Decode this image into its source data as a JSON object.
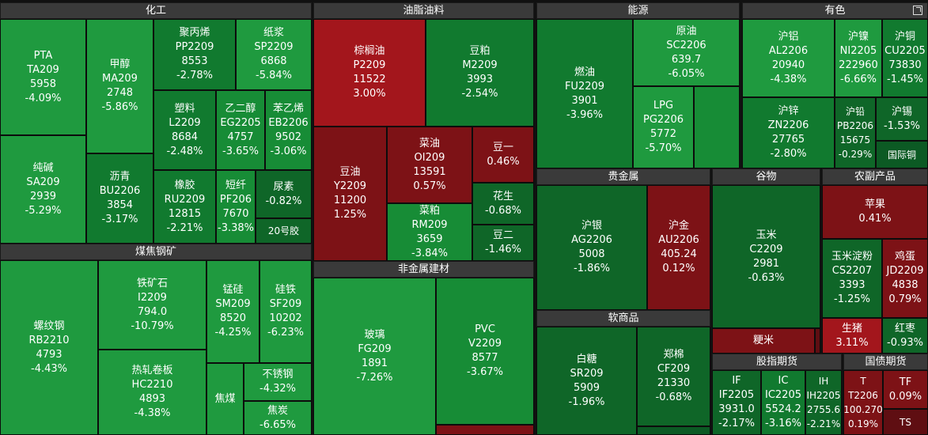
{
  "colors": {
    "g1": "#1f9a3f",
    "g2": "#178c36",
    "g3": "#117a2f",
    "g4": "#0f6628",
    "g5": "#0c5a24",
    "r1": "#a3161c",
    "r2": "#7d1216",
    "r3": "#5f0e12"
  },
  "sections": {
    "chemical": "化工",
    "oil": "油脂油料",
    "energy": "能源",
    "nonferrous": "有色",
    "coal_steel": "煤焦钢矿",
    "nonmetal": "非金属建材",
    "precious": "贵金属",
    "grain": "谷物",
    "agri": "农副产品",
    "soft": "软商品",
    "index_futures": "股指期货",
    "bond_futures": "国债期货"
  },
  "tiles": {
    "pta": {
      "name": "PTA",
      "code": "TA209",
      "price": "5958",
      "chg": "-4.09%"
    },
    "ma": {
      "name": "甲醇",
      "code": "MA209",
      "price": "2748",
      "chg": "-5.86%"
    },
    "pp": {
      "name": "聚丙烯",
      "code": "PP2209",
      "price": "8553",
      "chg": "-2.78%"
    },
    "sp": {
      "name": "纸浆",
      "code": "SP2209",
      "price": "6868",
      "chg": "-5.84%"
    },
    "l": {
      "name": "塑料",
      "code": "L2209",
      "price": "8684",
      "chg": "-2.48%"
    },
    "eg": {
      "name": "乙二醇",
      "code": "EG2205",
      "price": "4757",
      "chg": "-3.65%"
    },
    "eb": {
      "name": "苯乙烯",
      "code": "EB2206",
      "price": "9502",
      "chg": "-3.06%"
    },
    "sa": {
      "name": "纯碱",
      "code": "SA209",
      "price": "2939",
      "chg": "-5.29%"
    },
    "bu": {
      "name": "沥青",
      "code": "BU2206",
      "price": "3854",
      "chg": "-3.17%"
    },
    "ru": {
      "name": "橡胶",
      "code": "RU2209",
      "price": "12815",
      "chg": "-2.21%"
    },
    "pf": {
      "name": "短纤",
      "code": "PF206",
      "price": "7670",
      "chg": "-3.38%"
    },
    "ur": {
      "name": "尿素",
      "chg": "-0.82%"
    },
    "nr": {
      "name": "20号胶"
    },
    "p": {
      "name": "棕榈油",
      "code": "P2209",
      "price": "11522",
      "chg": "3.00%"
    },
    "m": {
      "name": "豆粕",
      "code": "M2209",
      "price": "3993",
      "chg": "-2.54%"
    },
    "y": {
      "name": "豆油",
      "code": "Y2209",
      "price": "11200",
      "chg": "1.25%"
    },
    "oi": {
      "name": "菜油",
      "code": "OI209",
      "price": "13591",
      "chg": "0.57%"
    },
    "a": {
      "name": "豆一",
      "chg": "0.46%"
    },
    "pk": {
      "name": "花生",
      "chg": "-0.68%"
    },
    "rm": {
      "name": "菜粕",
      "code": "RM209",
      "price": "3659",
      "chg": "-3.84%"
    },
    "b": {
      "name": "豆二",
      "chg": "-1.46%"
    },
    "fu": {
      "name": "燃油",
      "code": "FU2209",
      "price": "3901",
      "chg": "-3.96%"
    },
    "sc": {
      "name": "原油",
      "code": "SC2206",
      "price": "639.7",
      "chg": "-6.05%"
    },
    "pg": {
      "name": "LPG",
      "code": "PG2206",
      "price": "5772",
      "chg": "-5.70%"
    },
    "al": {
      "name": "沪铝",
      "code": "AL2206",
      "price": "20940",
      "chg": "-4.38%"
    },
    "ni": {
      "name": "沪镍",
      "code": "NI2205",
      "price": "222960",
      "chg": "-6.66%"
    },
    "cu": {
      "name": "沪铜",
      "code": "CU2205",
      "price": "73830",
      "chg": "-1.45%"
    },
    "zn": {
      "name": "沪锌",
      "code": "ZN2206",
      "price": "27765",
      "chg": "-2.80%"
    },
    "pb": {
      "name": "沪铅",
      "code": "PB2206",
      "price": "15675",
      "chg": "-0.29%"
    },
    "sn": {
      "name": "沪锡",
      "chg": "-1.53%"
    },
    "bc": {
      "name": "国际铜"
    },
    "rb": {
      "name": "螺纹钢",
      "code": "RB2210",
      "price": "4793",
      "chg": "-4.43%"
    },
    "i": {
      "name": "铁矿石",
      "code": "I2209",
      "price": "794.0",
      "chg": "-10.79%"
    },
    "sm": {
      "name": "锰硅",
      "code": "SM209",
      "price": "8520",
      "chg": "-4.25%"
    },
    "sf": {
      "name": "硅铁",
      "code": "SF209",
      "price": "10202",
      "chg": "-6.23%"
    },
    "hc": {
      "name": "热轧卷板",
      "code": "HC2210",
      "price": "4893",
      "chg": "-4.38%"
    },
    "jm": {
      "name": "焦煤"
    },
    "ss": {
      "name": "不锈钢",
      "chg": "-4.32%"
    },
    "j": {
      "name": "焦炭",
      "chg": "-6.65%"
    },
    "fg": {
      "name": "玻璃",
      "code": "FG209",
      "price": "1891",
      "chg": "-7.26%"
    },
    "v": {
      "name": "PVC",
      "code": "V2209",
      "price": "8577",
      "chg": "-3.67%"
    },
    "ag": {
      "name": "沪银",
      "code": "AG2206",
      "price": "5008",
      "chg": "-1.86%"
    },
    "au": {
      "name": "沪金",
      "code": "AU2206",
      "price": "405.24",
      "chg": "0.12%"
    },
    "sr": {
      "name": "白糖",
      "code": "SR209",
      "price": "5909",
      "chg": "-1.96%"
    },
    "cf": {
      "name": "郑棉",
      "code": "CF209",
      "price": "21330",
      "chg": "-0.68%"
    },
    "c": {
      "name": "玉米",
      "code": "C2209",
      "price": "2981",
      "chg": "-0.63%"
    },
    "jr": {
      "name": "粳米"
    },
    "ap": {
      "name": "苹果",
      "chg": "0.41%"
    },
    "cs": {
      "name": "玉米淀粉",
      "code": "CS2207",
      "price": "3393",
      "chg": "-1.25%"
    },
    "jd": {
      "name": "鸡蛋",
      "code": "JD2209",
      "price": "4838",
      "chg": "0.79%"
    },
    "lh": {
      "name": "生猪",
      "chg": "3.11%"
    },
    "cj": {
      "name": "红枣",
      "chg": "-0.93%"
    },
    "if": {
      "name": "IF",
      "code": "IF2205",
      "price": "3931.0",
      "chg": "-2.17%"
    },
    "ic": {
      "name": "IC",
      "code": "IC2205",
      "price": "5524.2",
      "chg": "-3.16%"
    },
    "ih": {
      "name": "IH",
      "code": "IH2205",
      "price": "2755.6",
      "chg": "-2.21%"
    },
    "t": {
      "name": "T",
      "code": "T2206",
      "price": "100.270",
      "chg": "0.19%"
    },
    "tf": {
      "name": "TF",
      "chg": "0.09%"
    },
    "ts": {
      "name": "TS"
    }
  }
}
